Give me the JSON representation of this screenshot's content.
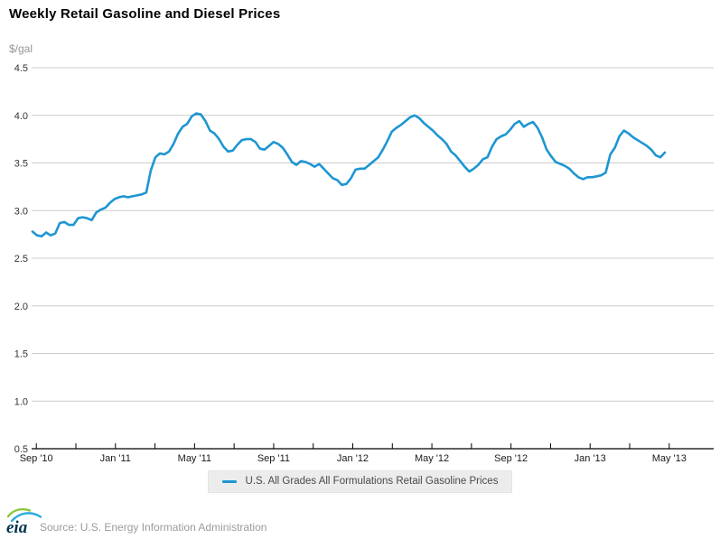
{
  "page": {
    "title": "Weekly Retail Gasoline and Diesel Prices",
    "y_axis_unit_label": "$/gal"
  },
  "legend": {
    "items": [
      {
        "label": "U.S. All Grades All Formulations Retail Gasoline Prices",
        "color": "#1e96d2"
      }
    ]
  },
  "source": {
    "label": "Source: U.S. Energy Information Administration",
    "logo_text": "eia"
  },
  "colors": {
    "line": "#1e96d2",
    "grid": "#cccccc",
    "axis": "#000000",
    "y_tick_text": "#333333",
    "x_tick_text": "#1a1a1a",
    "legend_bg": "#ececec",
    "muted_text": "#9b9b9b",
    "logo_navy": "#00344d",
    "logo_green": "#8cc63e",
    "logo_blue": "#29abe2"
  },
  "chart_data": {
    "type": "line",
    "title": "Weekly Retail Gasoline and Diesel Prices",
    "xlabel": "",
    "ylabel": "$/gal",
    "ylim": [
      0.5,
      4.5
    ],
    "grid": "horizontal",
    "legend_position": "bottom",
    "y_ticks": [
      4.5,
      4.0,
      3.5,
      3.0,
      2.5,
      2.0,
      1.5,
      1.0,
      0.5
    ],
    "y_tick_labels": [
      "4.5",
      "4.0",
      "3.5",
      "3.0",
      "2.5",
      "2.0",
      "1.5",
      "1.0",
      "0.5"
    ],
    "x_tick_labels": [
      "Sep '10",
      "Jan '11",
      "May '11",
      "Sep '11",
      "Jan '12",
      "May '12",
      "Sep '12",
      "Jan '13",
      "May '13"
    ],
    "x_minor_tick_interval_months": 2,
    "series": [
      {
        "name": "U.S. All Grades All Formulations Retail Gasoline Prices",
        "color": "#1e96d2",
        "frequency": "weekly",
        "start": "2010-08-30",
        "end": "2013-04-29",
        "values": [
          2.78,
          2.74,
          2.73,
          2.77,
          2.74,
          2.76,
          2.87,
          2.88,
          2.85,
          2.85,
          2.92,
          2.93,
          2.92,
          2.9,
          2.98,
          3.01,
          3.03,
          3.08,
          3.12,
          3.14,
          3.15,
          3.14,
          3.15,
          3.16,
          3.17,
          3.19,
          3.42,
          3.56,
          3.6,
          3.59,
          3.62,
          3.7,
          3.81,
          3.88,
          3.91,
          3.99,
          4.02,
          4.01,
          3.94,
          3.84,
          3.81,
          3.75,
          3.67,
          3.62,
          3.63,
          3.69,
          3.74,
          3.75,
          3.75,
          3.72,
          3.65,
          3.64,
          3.68,
          3.72,
          3.7,
          3.66,
          3.59,
          3.51,
          3.48,
          3.52,
          3.51,
          3.49,
          3.46,
          3.49,
          3.44,
          3.39,
          3.34,
          3.32,
          3.27,
          3.28,
          3.34,
          3.43,
          3.44,
          3.44,
          3.48,
          3.52,
          3.56,
          3.64,
          3.73,
          3.83,
          3.87,
          3.9,
          3.94,
          3.98,
          4.0,
          3.97,
          3.92,
          3.88,
          3.84,
          3.79,
          3.75,
          3.7,
          3.62,
          3.58,
          3.52,
          3.46,
          3.41,
          3.44,
          3.48,
          3.54,
          3.56,
          3.67,
          3.75,
          3.78,
          3.8,
          3.85,
          3.91,
          3.94,
          3.88,
          3.91,
          3.93,
          3.87,
          3.77,
          3.64,
          3.57,
          3.51,
          3.49,
          3.47,
          3.44,
          3.39,
          3.35,
          3.33,
          3.35,
          3.35,
          3.36,
          3.37,
          3.4,
          3.59,
          3.66,
          3.78,
          3.84,
          3.81,
          3.77,
          3.74,
          3.71,
          3.68,
          3.64,
          3.58,
          3.56,
          3.61
        ]
      }
    ]
  }
}
